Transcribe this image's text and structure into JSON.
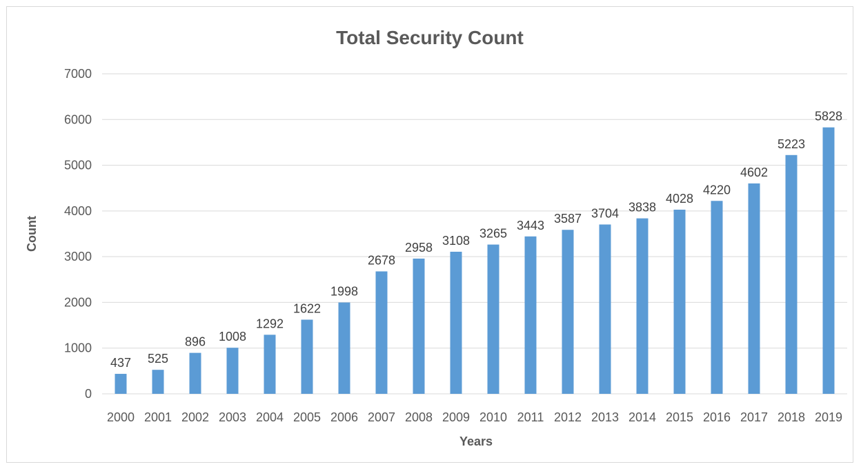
{
  "chart_data": {
    "type": "bar",
    "title": "Total Security Count",
    "xlabel": "Years",
    "ylabel": "Count",
    "categories": [
      "2000",
      "2001",
      "2002",
      "2003",
      "2004",
      "2005",
      "2006",
      "2007",
      "2008",
      "2009",
      "2010",
      "2011",
      "2012",
      "2013",
      "2014",
      "2015",
      "2016",
      "2017",
      "2018",
      "2019"
    ],
    "values": [
      437,
      525,
      896,
      1008,
      1292,
      1622,
      1998,
      2678,
      2958,
      3108,
      3265,
      3443,
      3587,
      3704,
      3838,
      4028,
      4220,
      4602,
      5223,
      5828
    ],
    "ylim": [
      0,
      7000
    ],
    "yticks": [
      0,
      1000,
      2000,
      3000,
      4000,
      5000,
      6000,
      7000
    ],
    "grid": true,
    "legend": "none",
    "bar_color": "#5b9bd5",
    "grid_color": "#d9d9d9"
  }
}
